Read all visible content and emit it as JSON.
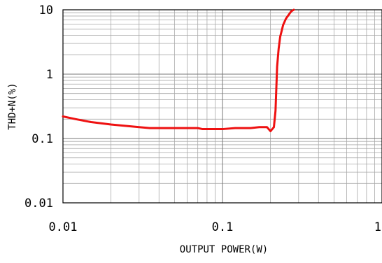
{
  "chart_data": {
    "type": "line",
    "title": "",
    "xlabel": "OUTPUT POWER(W)",
    "ylabel": "THD+N(%)",
    "xscale": "log",
    "yscale": "log",
    "xlim": [
      0.01,
      1
    ],
    "ylim": [
      0.01,
      10
    ],
    "grid": true,
    "x_ticks": [
      {
        "value": 0.01,
        "label": "0.01"
      },
      {
        "value": 0.1,
        "label": "0.1"
      },
      {
        "value": 1,
        "label": "1"
      }
    ],
    "y_ticks": [
      {
        "value": 10,
        "label": "10"
      },
      {
        "value": 1,
        "label": "1"
      },
      {
        "value": 0.1,
        "label": "0.1"
      },
      {
        "value": 0.01,
        "label": "0.01"
      }
    ],
    "series": [
      {
        "color": "#ee1111",
        "x": [
          0.01,
          0.012,
          0.015,
          0.02,
          0.03,
          0.035,
          0.04,
          0.05,
          0.06,
          0.07,
          0.075,
          0.08,
          0.1,
          0.12,
          0.15,
          0.17,
          0.19,
          0.2,
          0.21,
          0.215,
          0.22,
          0.225,
          0.23,
          0.24,
          0.25,
          0.27,
          0.28
        ],
        "y": [
          0.22,
          0.2,
          0.18,
          0.165,
          0.15,
          0.145,
          0.145,
          0.145,
          0.145,
          0.145,
          0.14,
          0.14,
          0.14,
          0.145,
          0.145,
          0.15,
          0.15,
          0.13,
          0.15,
          0.27,
          1.3,
          2.5,
          3.8,
          5.8,
          7.3,
          9.5,
          10
        ]
      }
    ]
  }
}
